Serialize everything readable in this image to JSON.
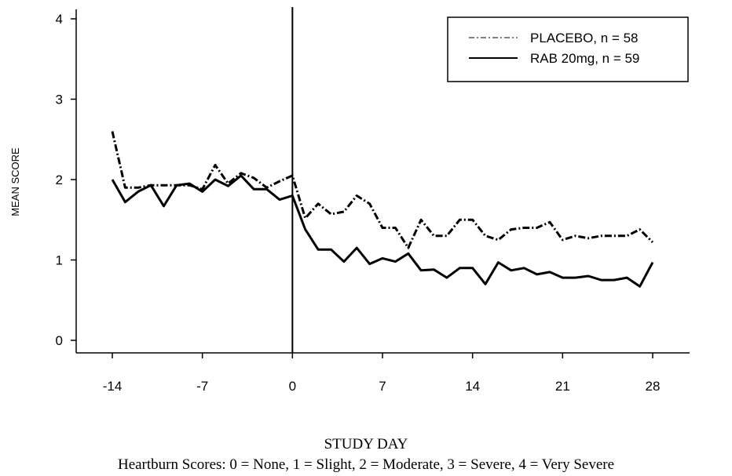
{
  "chart_data": {
    "type": "line",
    "xlabel": "STUDY DAY",
    "ylabel": "MEAN SCORE",
    "caption": "Heartburn Scores: 0 = None, 1 = Slight, 2 = Moderate, 3 = Severe, 4 = Very Severe",
    "xlim": [
      -14,
      28
    ],
    "ylim": [
      0,
      4
    ],
    "x_ticks": [
      -14,
      -7,
      0,
      7,
      14,
      21,
      28
    ],
    "y_ticks": [
      0,
      1,
      2,
      3,
      4
    ],
    "reference_line_x": 0,
    "legend_position": "top-right",
    "grid": false,
    "series": [
      {
        "name": "PLACEBO, n = 58",
        "style": "dash-dot",
        "color": "#000000",
        "x": [
          -14,
          -13,
          -12,
          -11,
          -10,
          -9,
          -8,
          -7,
          -6,
          -5,
          -4,
          -3,
          -2,
          -1,
          0,
          1,
          2,
          3,
          4,
          5,
          6,
          7,
          8,
          9,
          10,
          11,
          12,
          13,
          14,
          15,
          16,
          17,
          18,
          19,
          20,
          21,
          22,
          23,
          24,
          25,
          26,
          27,
          28
        ],
        "y": [
          2.6,
          1.9,
          1.9,
          1.93,
          1.93,
          1.93,
          1.93,
          1.88,
          2.18,
          1.95,
          2.08,
          2.02,
          1.9,
          1.98,
          2.05,
          1.52,
          1.7,
          1.57,
          1.6,
          1.8,
          1.7,
          1.4,
          1.4,
          1.15,
          1.5,
          1.3,
          1.3,
          1.5,
          1.5,
          1.3,
          1.25,
          1.38,
          1.4,
          1.4,
          1.47,
          1.25,
          1.3,
          1.27,
          1.3,
          1.3,
          1.3,
          1.38,
          1.22
        ]
      },
      {
        "name": "RAB 20mg, n = 59",
        "style": "solid",
        "color": "#000000",
        "x": [
          -14,
          -13,
          -12,
          -11,
          -10,
          -9,
          -8,
          -7,
          -6,
          -5,
          -4,
          -3,
          -2,
          -1,
          0,
          1,
          2,
          3,
          4,
          5,
          6,
          7,
          8,
          9,
          10,
          11,
          12,
          13,
          14,
          15,
          16,
          17,
          18,
          19,
          20,
          21,
          22,
          23,
          24,
          25,
          26,
          27,
          28
        ],
        "y": [
          2.0,
          1.72,
          1.85,
          1.93,
          1.67,
          1.93,
          1.95,
          1.85,
          2.0,
          1.92,
          2.05,
          1.88,
          1.88,
          1.75,
          1.8,
          1.38,
          1.13,
          1.13,
          0.98,
          1.15,
          0.95,
          1.02,
          0.98,
          1.08,
          0.87,
          0.88,
          0.78,
          0.9,
          0.9,
          0.7,
          0.97,
          0.87,
          0.9,
          0.82,
          0.85,
          0.78,
          0.78,
          0.8,
          0.75,
          0.75,
          0.78,
          0.67,
          0.97
        ]
      }
    ]
  }
}
